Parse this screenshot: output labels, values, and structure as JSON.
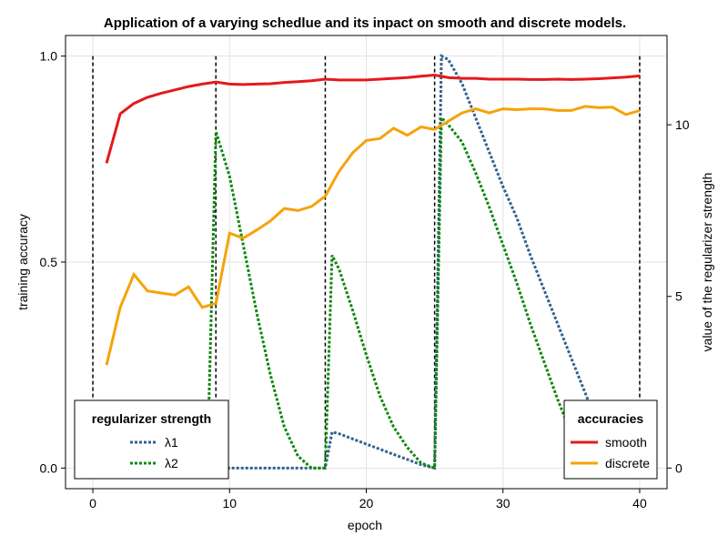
{
  "chart_data": {
    "type": "line",
    "title": "Application of a varying schedlue and its inpact on smooth and discrete models.",
    "xlabel": "epoch",
    "ylabel_left": "training accuracy",
    "ylabel_right": "value of the regularizer strength",
    "xlim": [
      -2,
      42
    ],
    "ylim_left": [
      -0.05,
      1.05
    ],
    "ylim_right": [
      -0.6,
      12.6
    ],
    "x_ticks": [
      0,
      10,
      20,
      30,
      40
    ],
    "y_ticks_left": [
      0.0,
      0.5,
      1.0
    ],
    "y_ticks_left_labels": [
      "0.0",
      "0.5",
      "1.0"
    ],
    "y_ticks_right": [
      0,
      5,
      10
    ],
    "grid": true,
    "vlines": [
      0,
      9,
      17,
      25,
      40
    ],
    "accuracy_series": [
      {
        "name": "smooth",
        "color": "#e41a1c",
        "x": [
          1,
          2,
          3,
          4,
          5,
          6,
          7,
          8,
          9,
          10,
          11,
          12,
          13,
          14,
          15,
          16,
          17,
          18,
          19,
          20,
          21,
          22,
          23,
          24,
          25,
          26,
          27,
          28,
          29,
          30,
          31,
          32,
          33,
          34,
          35,
          36,
          37,
          38,
          39,
          40
        ],
        "values": [
          0.74,
          0.86,
          0.885,
          0.9,
          0.91,
          0.918,
          0.926,
          0.932,
          0.937,
          0.932,
          0.931,
          0.932,
          0.933,
          0.936,
          0.938,
          0.94,
          0.944,
          0.942,
          0.942,
          0.942,
          0.944,
          0.946,
          0.948,
          0.951,
          0.954,
          0.948,
          0.946,
          0.946,
          0.944,
          0.944,
          0.944,
          0.943,
          0.943,
          0.944,
          0.943,
          0.944,
          0.945,
          0.947,
          0.949,
          0.952
        ]
      },
      {
        "name": "discrete",
        "color": "#f5a30a",
        "x": [
          1,
          2,
          3,
          4,
          5,
          6,
          7,
          8,
          9,
          10,
          11,
          12,
          13,
          14,
          15,
          16,
          17,
          18,
          19,
          20,
          21,
          22,
          23,
          24,
          25,
          26,
          27,
          28,
          29,
          30,
          31,
          32,
          33,
          34,
          35,
          36,
          37,
          38,
          39,
          40
        ],
        "values": [
          0.25,
          0.39,
          0.47,
          0.43,
          0.425,
          0.42,
          0.44,
          0.39,
          0.4,
          0.57,
          0.558,
          0.578,
          0.6,
          0.63,
          0.625,
          0.635,
          0.66,
          0.72,
          0.765,
          0.795,
          0.8,
          0.825,
          0.808,
          0.828,
          0.822,
          0.842,
          0.862,
          0.872,
          0.862,
          0.872,
          0.87,
          0.872,
          0.872,
          0.868,
          0.868,
          0.878,
          0.875,
          0.876,
          0.858,
          0.868
        ]
      }
    ],
    "regularizer_series": [
      {
        "name": "λ1",
        "color": "#34618d",
        "x": [
          8.5,
          9,
          10,
          11,
          12,
          13,
          14,
          15,
          16,
          17,
          17.5,
          18,
          19,
          20,
          21,
          22,
          23,
          24,
          25,
          25.5,
          26,
          27,
          28,
          29,
          30,
          31,
          32,
          33,
          34,
          35,
          36,
          37,
          38,
          39,
          40
        ],
        "values": [
          0,
          0,
          0,
          0,
          0,
          0,
          0,
          0,
          0,
          0,
          1.05,
          1.0,
          0.85,
          0.7,
          0.55,
          0.4,
          0.25,
          0.1,
          0,
          12.0,
          11.9,
          11.2,
          10.2,
          9.2,
          8.2,
          7.3,
          6.2,
          5.2,
          4.2,
          3.2,
          2.2,
          1.2,
          0.2,
          0,
          0
        ]
      },
      {
        "name": "λ2",
        "color": "#118811",
        "x": [
          8.5,
          9,
          10,
          11,
          12,
          13,
          14,
          15,
          16,
          17,
          17.5,
          18,
          19,
          20,
          21,
          22,
          23,
          24,
          25,
          25.5,
          26,
          27,
          28,
          29,
          30,
          31,
          32,
          33,
          34,
          35,
          36,
          37,
          38,
          39,
          40
        ],
        "values": [
          2.0,
          9.8,
          8.5,
          6.5,
          4.5,
          2.7,
          1.2,
          0.35,
          0,
          0,
          6.2,
          5.8,
          4.6,
          3.3,
          2.1,
          1.2,
          0.6,
          0.15,
          0,
          10.2,
          10.0,
          9.5,
          8.6,
          7.6,
          6.5,
          5.4,
          4.2,
          3.1,
          2.0,
          1.0,
          0.2,
          0,
          0,
          0,
          0
        ]
      }
    ],
    "legends": {
      "regularizer": {
        "title": "regularizer strength",
        "placement": "bottom-left",
        "entries": [
          "λ1",
          "λ2"
        ]
      },
      "accuracies": {
        "title": "accuracies",
        "placement": "bottom-right",
        "entries": [
          "smooth",
          "discrete"
        ]
      }
    }
  }
}
